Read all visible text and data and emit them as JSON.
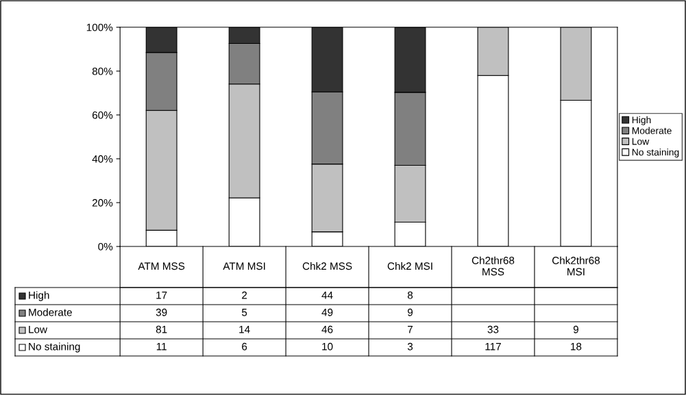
{
  "chart_data": [
    {
      "type": "bar",
      "stacked": true,
      "categories": [
        null,
        null,
        null,
        null,
        null,
        null
      ],
      "series": [
        {
          "name": "No staining",
          "color": "#ffffff",
          "values": [
            7.4,
            22.2,
            6.7,
            11.1,
            78.0,
            66.7
          ]
        },
        {
          "name": "Low",
          "color": "#c0c0c0",
          "values": [
            54.7,
            51.9,
            30.9,
            25.9,
            22.0,
            33.3
          ]
        },
        {
          "name": "Moderate",
          "color": "#808080",
          "values": [
            26.4,
            18.5,
            32.9,
            33.3,
            null,
            null
          ]
        },
        {
          "name": "High",
          "color": "#333333",
          "values": [
            11.5,
            7.4,
            29.5,
            29.6,
            null,
            null
          ]
        }
      ],
      "ylim": [
        0,
        100
      ],
      "yticks": [
        {
          "value": 0,
          "label": "0%"
        },
        {
          "value": 20,
          "label": "20%"
        },
        {
          "value": 40,
          "label": "40%"
        },
        {
          "value": 60,
          "label": "60%"
        },
        {
          "value": 80,
          "label": "80%"
        },
        {
          "value": 100,
          "label": "100%"
        }
      ],
      "legend": "right",
      "grid": false
    },
    {
      "type": "other",
      "data_labels": true,
      "categories": [
        "ATM MSS",
        "ATM MSI",
        "Chk2 MSS",
        "Chk2 MSI",
        "Ch2thr68 MSS",
        "Chk2thr68 MSI"
      ],
      "series": [
        {
          "name": "No staining",
          "color": "#ffffff",
          "values": [
            11,
            6,
            10,
            3,
            117,
            18
          ]
        },
        {
          "name": "Low",
          "color": "#c0c0c0",
          "values": [
            81,
            14,
            46,
            7,
            33,
            9
          ]
        },
        {
          "name": "Moderate",
          "color": "#808080",
          "values": [
            39,
            5,
            49,
            9,
            null,
            null
          ]
        },
        {
          "name": "High",
          "color": "#333333",
          "values": [
            17,
            2,
            44,
            8,
            null,
            null
          ]
        }
      ]
    }
  ]
}
